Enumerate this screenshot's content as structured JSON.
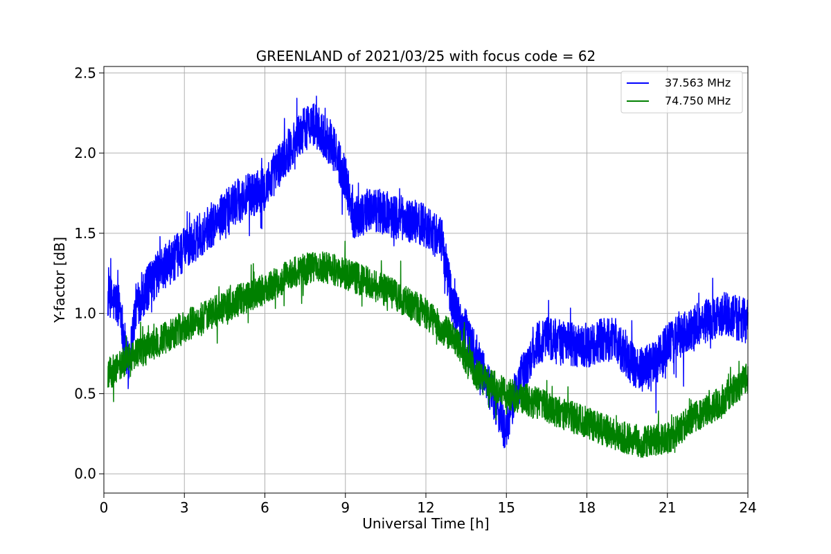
{
  "chart_data": {
    "type": "line",
    "title": "GREENLAND of 2021/03/25 with focus code = 62",
    "xlabel": "Universal Time [h]",
    "ylabel": "Y-factor [dB]",
    "xlim": [
      0,
      24
    ],
    "ylim": [
      -0.12,
      2.54
    ],
    "xticks": [
      0,
      3,
      6,
      9,
      12,
      15,
      18,
      21,
      24
    ],
    "xtick_labels": [
      "0",
      "3",
      "6",
      "9",
      "12",
      "15",
      "18",
      "21",
      "24"
    ],
    "yticks": [
      0.0,
      0.5,
      1.0,
      1.5,
      2.0,
      2.5
    ],
    "ytick_labels": [
      "0.0",
      "0.5",
      "1.0",
      "1.5",
      "2.0",
      "2.5"
    ],
    "grid": true,
    "legend_position": "top-right",
    "series": [
      {
        "name": "37.563 MHz",
        "color": "#0000ff",
        "noise_amplitude": 0.14,
        "x": [
          0.15,
          0.6,
          0.9,
          1.2,
          2.0,
          3.0,
          4.0,
          5.0,
          6.0,
          7.0,
          7.7,
          8.5,
          9.0,
          9.3,
          10.0,
          11.0,
          12.0,
          12.6,
          13.0,
          13.6,
          14.2,
          14.8,
          15.0,
          15.3,
          15.7,
          16.0,
          16.5,
          17.0,
          18.0,
          19.0,
          19.5,
          20.0,
          20.5,
          21.0,
          22.0,
          23.0,
          24.0
        ],
        "y": [
          1.1,
          1.05,
          0.65,
          1.05,
          1.25,
          1.4,
          1.55,
          1.7,
          1.78,
          2.05,
          2.2,
          2.05,
          1.85,
          1.6,
          1.65,
          1.6,
          1.55,
          1.45,
          1.05,
          0.85,
          0.6,
          0.35,
          0.25,
          0.5,
          0.65,
          0.78,
          0.85,
          0.82,
          0.8,
          0.85,
          0.72,
          0.65,
          0.68,
          0.8,
          0.92,
          1.0,
          0.95
        ]
      },
      {
        "name": "74.750 MHz",
        "color": "#008000",
        "noise_amplitude": 0.1,
        "x": [
          0.15,
          1.0,
          2.0,
          3.0,
          4.0,
          5.0,
          6.0,
          7.0,
          8.0,
          9.0,
          10.0,
          11.0,
          12.0,
          13.0,
          14.0,
          15.0,
          16.0,
          17.0,
          18.0,
          19.0,
          20.0,
          21.0,
          22.0,
          23.0,
          24.0
        ],
        "y": [
          0.62,
          0.72,
          0.82,
          0.92,
          1.0,
          1.08,
          1.15,
          1.25,
          1.3,
          1.25,
          1.18,
          1.1,
          1.0,
          0.85,
          0.6,
          0.5,
          0.45,
          0.38,
          0.32,
          0.25,
          0.2,
          0.22,
          0.35,
          0.45,
          0.6
        ]
      }
    ]
  }
}
